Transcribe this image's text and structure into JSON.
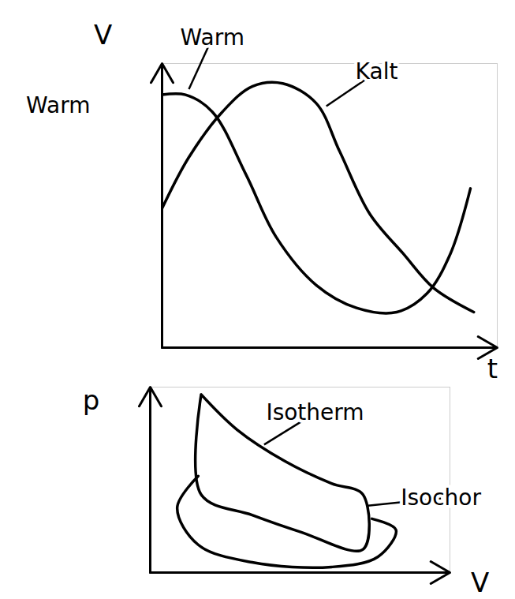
{
  "chart_data": [
    {
      "type": "line",
      "x_label": "t",
      "y_label": "V",
      "xlim": [
        0,
        10
      ],
      "ylim": [
        0,
        10
      ],
      "xticks": [],
      "yticks": [],
      "tick_labels": false,
      "grid": false,
      "series": [
        {
          "name": "Warm",
          "color": "#000000",
          "x": [
            0,
            0.7,
            1.5,
            2.5,
            3.4,
            4.6,
            5.8,
            7.0,
            7.9,
            8.6,
            9.2
          ],
          "values": [
            8.9,
            8.9,
            8.3,
            6.1,
            3.9,
            2.2,
            1.4,
            1.25,
            1.9,
            3.3,
            5.6
          ]
        },
        {
          "name": "Kalt",
          "color": "#000000",
          "x": [
            0,
            0.8,
            1.8,
            2.7,
            3.6,
            4.6,
            5.3,
            6.2,
            7.2,
            8.1,
            9.3
          ],
          "values": [
            4.9,
            6.7,
            8.3,
            9.2,
            9.3,
            8.6,
            6.9,
            4.7,
            3.3,
            2.1,
            1.25
          ]
        }
      ],
      "annotations": [
        {
          "text": "Warm",
          "x": -3.1,
          "y": 8.5
        },
        {
          "text": "Warm",
          "x": 1.5,
          "y": 10.9,
          "arrow_x": 0.8,
          "arrow_y": 9.1
        },
        {
          "text": "Kalt",
          "x": 6.4,
          "y": 9.7,
          "arrow_x": 4.9,
          "arrow_y": 8.5
        }
      ]
    },
    {
      "type": "line",
      "x_label": "V",
      "y_label": "p",
      "xlim": [
        0,
        10
      ],
      "ylim": [
        0,
        10
      ],
      "xticks": [],
      "yticks": [],
      "tick_labels": false,
      "grid": false,
      "series": [
        {
          "color": "#000000",
          "x": [
            1.7,
            2.9,
            4.5,
            6.05,
            7.1,
            7.1,
            5.0,
            3.4,
            1.7,
            1.7
          ],
          "values": [
            9.6,
            7.7,
            6.0,
            4.8,
            4.2,
            1.25,
            2.2,
            3.1,
            4.2,
            9.6
          ]
        },
        {
          "color": "#000000",
          "x": [
            1.6,
            0.9,
            1.6,
            3.4,
            6.05,
            7.6,
            8.2,
            7.4
          ],
          "values": [
            5.2,
            3.5,
            1.5,
            0.55,
            0.3,
            0.85,
            2.3,
            2.9
          ]
        }
      ],
      "annotations": [
        {
          "text": "Isotherm",
          "x": 5.5,
          "y": 8.6,
          "arrow_x": 3.8,
          "arrow_y": 6.9
        },
        {
          "text": "Isochor",
          "x": 9.7,
          "y": 4.0,
          "arrow_x": 7.2,
          "arrow_y": 3.6
        }
      ]
    }
  ]
}
